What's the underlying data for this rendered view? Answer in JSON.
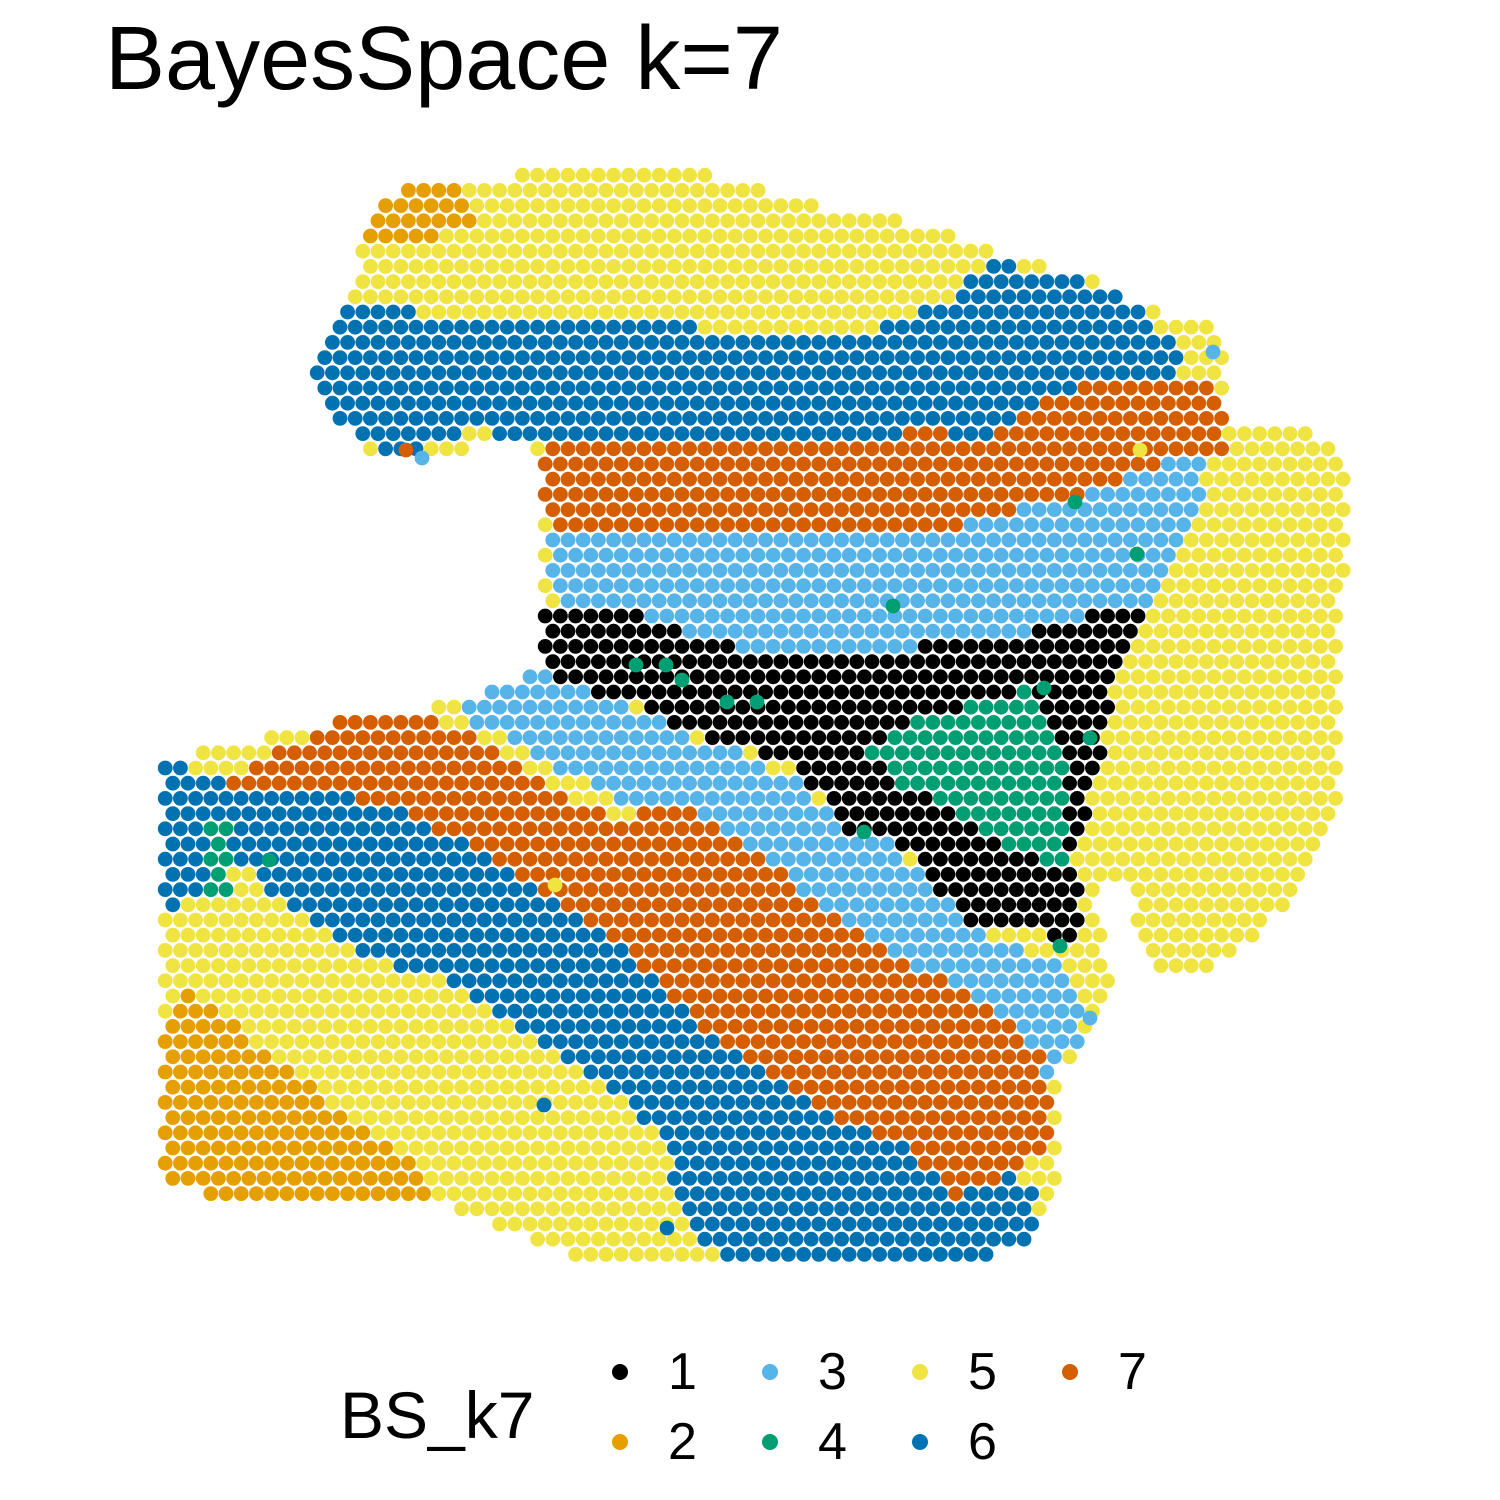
{
  "chart_data": {
    "type": "scatter",
    "title": "BayesSpace k=7",
    "subtitle": "",
    "xlabel": "",
    "ylabel": "",
    "grid": false,
    "axes": false,
    "legend": {
      "title": "BS_k7",
      "placement": "bottom",
      "entries": [
        {
          "label": "1",
          "color": "#000000"
        },
        {
          "label": "2",
          "color": "#E69F00"
        },
        {
          "label": "3",
          "color": "#56B4E9"
        },
        {
          "label": "4",
          "color": "#009E73"
        },
        {
          "label": "5",
          "color": "#F0E442"
        },
        {
          "label": "6",
          "color": "#0072B2"
        },
        {
          "label": "7",
          "color": "#D55E00"
        }
      ]
    },
    "spot_map": {
      "grid_rows": 61,
      "row_step_y": 18.1,
      "cluster_order": [
        5,
        2,
        6,
        3,
        4,
        7,
        1
      ]
    }
  }
}
